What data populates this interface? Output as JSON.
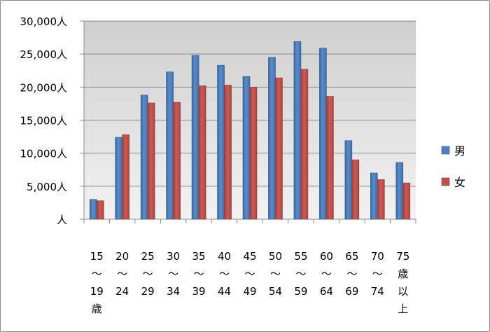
{
  "chart_data": {
    "type": "bar",
    "categories": [
      [
        "15",
        "～",
        "19",
        "歳"
      ],
      [
        "20",
        "～",
        "24"
      ],
      [
        "25",
        "～",
        "29"
      ],
      [
        "30",
        "～",
        "34"
      ],
      [
        "35",
        "～",
        "39"
      ],
      [
        "40",
        "～",
        "44"
      ],
      [
        "45",
        "～",
        "49"
      ],
      [
        "50",
        "～",
        "54"
      ],
      [
        "55",
        "～",
        "59"
      ],
      [
        "60",
        "～",
        "64"
      ],
      [
        "65",
        "～",
        "69"
      ],
      [
        "70",
        "～",
        "74"
      ],
      [
        "75",
        "歳",
        "以",
        "上"
      ]
    ],
    "series": [
      {
        "name": "男",
        "color": "#4f81bd",
        "values": [
          3000,
          12400,
          18800,
          22300,
          24800,
          23300,
          21600,
          24500,
          26900,
          25900,
          11900,
          7000,
          8600
        ]
      },
      {
        "name": "女",
        "color": "#c0504d",
        "values": [
          2800,
          12800,
          17600,
          17700,
          20200,
          20300,
          20000,
          21400,
          22700,
          18600,
          9000,
          6000,
          5500
        ]
      }
    ],
    "ylim": [
      0,
      30000
    ],
    "yticks": [
      {
        "value": 0,
        "label": "人"
      },
      {
        "value": 5000,
        "label": "5,000人"
      },
      {
        "value": 10000,
        "label": "10,000人"
      },
      {
        "value": 15000,
        "label": "15,000人"
      },
      {
        "value": 20000,
        "label": "20,000人"
      },
      {
        "value": 25000,
        "label": "25,000人"
      },
      {
        "value": 30000,
        "label": "30,000人"
      }
    ],
    "grid": true,
    "legend": "right",
    "plot_background": "#d9d9d9"
  }
}
